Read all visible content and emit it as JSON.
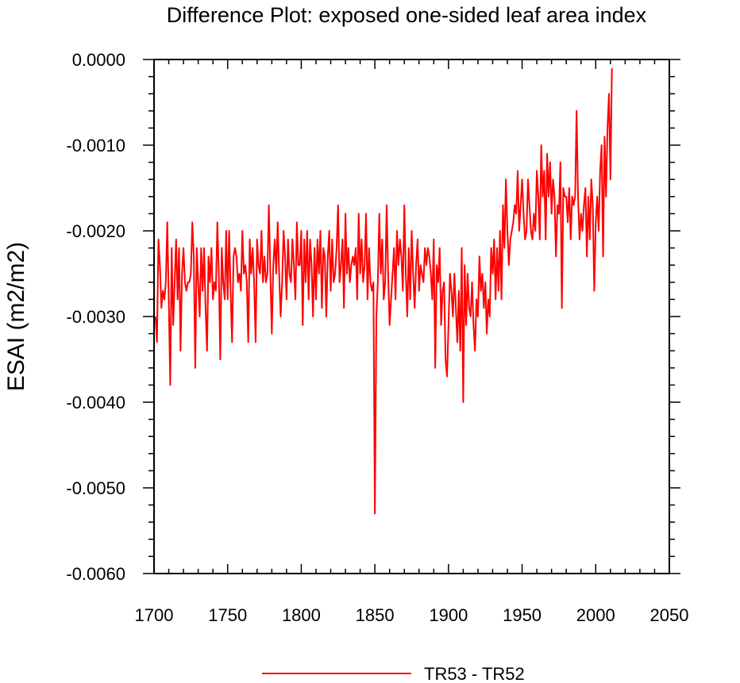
{
  "chart_data": {
    "type": "line",
    "title": "Difference Plot: exposed one-sided leaf area index",
    "xlabel": "",
    "ylabel": "ESAI  (m2/m2)",
    "xlim": [
      1700,
      2050
    ],
    "ylim": [
      -0.006,
      0.0
    ],
    "x_ticks": [
      1700,
      1750,
      1800,
      1850,
      1900,
      1950,
      2000,
      2050
    ],
    "x_tick_labels": [
      "1700",
      "1750",
      "1800",
      "1850",
      "1900",
      "1950",
      "2000",
      "2050"
    ],
    "y_ticks": [
      -0.006,
      -0.005,
      -0.004,
      -0.003,
      -0.002,
      -0.001,
      0.0
    ],
    "y_tick_labels": [
      "-0.0060",
      "-0.0050",
      "-0.0040",
      "-0.0030",
      "-0.0020",
      "-0.0010",
      "0.0000"
    ],
    "legend_position": "bottom-center",
    "grid": false,
    "series": [
      {
        "name": "TR53 - TR52",
        "color": "#ff0000",
        "x_start": 1701,
        "x_step": 1,
        "values": [
          -0.003,
          -0.0033,
          -0.0021,
          -0.0024,
          -0.0029,
          -0.0027,
          -0.0028,
          -0.0026,
          -0.0019,
          -0.0028,
          -0.0038,
          -0.0022,
          -0.0031,
          -0.0026,
          -0.0021,
          -0.0028,
          -0.0022,
          -0.0034,
          -0.0025,
          -0.0022,
          -0.0026,
          -0.0027,
          -0.0026,
          -0.0026,
          -0.0025,
          -0.0019,
          -0.0023,
          -0.0036,
          -0.0022,
          -0.0026,
          -0.003,
          -0.0022,
          -0.0027,
          -0.0022,
          -0.0029,
          -0.0034,
          -0.0023,
          -0.0026,
          -0.0022,
          -0.0028,
          -0.0026,
          -0.0027,
          -0.0019,
          -0.0025,
          -0.0035,
          -0.0022,
          -0.0026,
          -0.0028,
          -0.002,
          -0.0028,
          -0.002,
          -0.0027,
          -0.0033,
          -0.0023,
          -0.0022,
          -0.0023,
          -0.0026,
          -0.0025,
          -0.0027,
          -0.002,
          -0.0025,
          -0.0024,
          -0.0026,
          -0.0033,
          -0.0021,
          -0.0025,
          -0.0022,
          -0.0026,
          -0.0033,
          -0.0021,
          -0.0024,
          -0.0025,
          -0.002,
          -0.0026,
          -0.0023,
          -0.0026,
          -0.0025,
          -0.0017,
          -0.0025,
          -0.0032,
          -0.0024,
          -0.0021,
          -0.0025,
          -0.0019,
          -0.0025,
          -0.003,
          -0.0026,
          -0.002,
          -0.0023,
          -0.0028,
          -0.0021,
          -0.0025,
          -0.0026,
          -0.0021,
          -0.0024,
          -0.0028,
          -0.0019,
          -0.0024,
          -0.0024,
          -0.002,
          -0.0031,
          -0.0021,
          -0.0026,
          -0.002,
          -0.0028,
          -0.0021,
          -0.0024,
          -0.003,
          -0.0022,
          -0.0028,
          -0.0021,
          -0.0025,
          -0.002,
          -0.0029,
          -0.0022,
          -0.0023,
          -0.003,
          -0.0023,
          -0.002,
          -0.0027,
          -0.0021,
          -0.0026,
          -0.0025,
          -0.0022,
          -0.0017,
          -0.0026,
          -0.0024,
          -0.0021,
          -0.0029,
          -0.0018,
          -0.0025,
          -0.0022,
          -0.0026,
          -0.0024,
          -0.0023,
          -0.0024,
          -0.0022,
          -0.0028,
          -0.0018,
          -0.0025,
          -0.0021,
          -0.0026,
          -0.0024,
          -0.0018,
          -0.0028,
          -0.0022,
          -0.0026,
          -0.0027,
          -0.0026,
          -0.0053,
          -0.003,
          -0.0026,
          -0.0018,
          -0.0025,
          -0.0021,
          -0.0028,
          -0.0026,
          -0.0017,
          -0.0025,
          -0.0031,
          -0.0028,
          -0.0025,
          -0.0022,
          -0.0028,
          -0.002,
          -0.0024,
          -0.0021,
          -0.0023,
          -0.0027,
          -0.0017,
          -0.0025,
          -0.003,
          -0.0022,
          -0.0028,
          -0.002,
          -0.0025,
          -0.0029,
          -0.0024,
          -0.0021,
          -0.0027,
          -0.0024,
          -0.0025,
          -0.0026,
          -0.0022,
          -0.0024,
          -0.0022,
          -0.0023,
          -0.0025,
          -0.0028,
          -0.0021,
          -0.0036,
          -0.0024,
          -0.0026,
          -0.0022,
          -0.0031,
          -0.0027,
          -0.0026,
          -0.0035,
          -0.0037,
          -0.0031,
          -0.0025,
          -0.0027,
          -0.003,
          -0.0025,
          -0.0029,
          -0.0033,
          -0.0027,
          -0.0034,
          -0.0022,
          -0.004,
          -0.0024,
          -0.0031,
          -0.0025,
          -0.0029,
          -0.003,
          -0.0026,
          -0.0031,
          -0.0034,
          -0.0028,
          -0.003,
          -0.0023,
          -0.0027,
          -0.0025,
          -0.0029,
          -0.0026,
          -0.0032,
          -0.0028,
          -0.003,
          -0.0022,
          -0.0025,
          -0.0021,
          -0.0028,
          -0.0022,
          -0.0027,
          -0.002,
          -0.0028,
          -0.0017,
          -0.0022,
          -0.0014,
          -0.002,
          -0.0024,
          -0.0021,
          -0.002,
          -0.0019,
          -0.0017,
          -0.0018,
          -0.0013,
          -0.002,
          -0.0017,
          -0.0014,
          -0.0018,
          -0.0021,
          -0.002,
          -0.0014,
          -0.0017,
          -0.002,
          -0.0021,
          -0.0018,
          -0.002,
          -0.0013,
          -0.0016,
          -0.0021,
          -0.001,
          -0.0016,
          -0.0013,
          -0.0021,
          -0.0011,
          -0.0016,
          -0.0012,
          -0.0018,
          -0.0014,
          -0.0016,
          -0.0023,
          -0.0017,
          -0.0018,
          -0.0012,
          -0.0029,
          -0.0015,
          -0.0016,
          -0.0016,
          -0.0019,
          -0.0015,
          -0.0021,
          -0.0016,
          -0.0017,
          -0.0016,
          -0.0006,
          -0.0016,
          -0.0021,
          -0.0018,
          -0.002,
          -0.0017,
          -0.0015,
          -0.0023,
          -0.0016,
          -0.0021,
          -0.0014,
          -0.0017,
          -0.0027,
          -0.0019,
          -0.0016,
          -0.002,
          -0.0013,
          -0.001,
          -0.0023,
          -0.0009,
          -0.0016,
          -0.0008,
          -0.0004,
          -0.0014,
          -0.0001
        ]
      }
    ]
  }
}
